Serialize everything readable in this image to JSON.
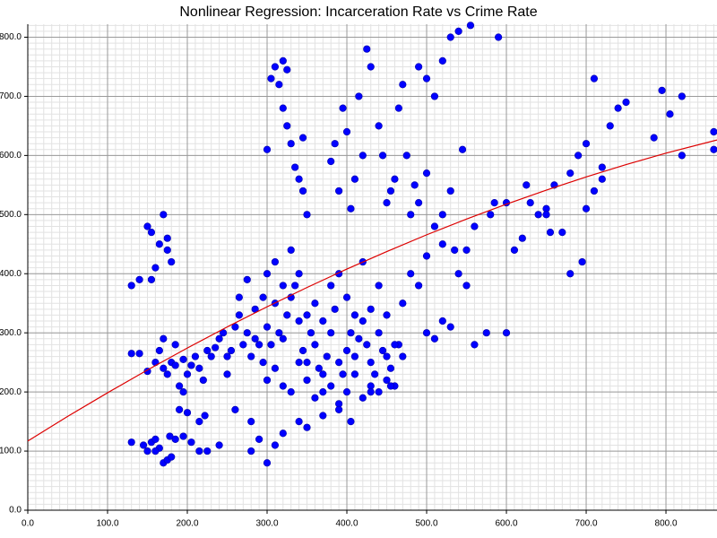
{
  "chart_data": {
    "type": "scatter",
    "title": "Nonlinear Regression: Incarceration Rate vs Crime Rate",
    "xlim": [
      0,
      864
    ],
    "ylim": [
      0,
      822
    ],
    "xticks": [
      {
        "value": 0,
        "label": "0.0"
      },
      {
        "value": 100,
        "label": "100.0"
      },
      {
        "value": 200,
        "label": "200.0"
      },
      {
        "value": 300,
        "label": "300.0"
      },
      {
        "value": 400,
        "label": "400.0"
      },
      {
        "value": 500,
        "label": "500.0"
      },
      {
        "value": 600,
        "label": "600.0"
      },
      {
        "value": 700,
        "label": "700.0"
      },
      {
        "value": 800,
        "label": "800.0"
      }
    ],
    "yticks": [
      {
        "value": 0,
        "label": "0.0"
      },
      {
        "value": 100,
        "label": "100.0"
      },
      {
        "value": 200,
        "label": "200.0"
      },
      {
        "value": 300,
        "label": "300.0"
      },
      {
        "value": 400,
        "label": "400.0"
      },
      {
        "value": 500,
        "label": "500.0"
      },
      {
        "value": 600,
        "label": "600.0"
      },
      {
        "value": 700,
        "label": "700.0"
      },
      {
        "value": 800,
        "label": "800.0"
      }
    ],
    "grid": true,
    "series": [
      {
        "type": "scatter",
        "color": "#0000ff",
        "x": [
          130,
          145,
          150,
          155,
          160,
          165,
          170,
          175,
          180,
          185,
          195,
          205,
          215,
          225,
          240,
          178,
          160,
          150,
          160,
          170,
          175,
          180,
          185,
          190,
          195,
          200,
          205,
          210,
          215,
          220,
          225,
          190,
          200,
          215,
          222,
          170,
          165,
          130,
          140,
          185,
          195,
          230,
          235,
          130,
          140,
          155,
          160,
          165,
          150,
          155,
          170,
          175,
          175,
          180,
          240,
          245,
          250,
          255,
          260,
          265,
          270,
          275,
          280,
          285,
          290,
          295,
          300,
          305,
          310,
          315,
          320,
          325,
          330,
          335,
          340,
          345,
          350,
          355,
          360,
          365,
          370,
          375,
          380,
          385,
          390,
          395,
          400,
          405,
          410,
          415,
          420,
          425,
          430,
          435,
          440,
          445,
          450,
          455,
          460,
          465,
          470,
          250,
          265,
          275,
          285,
          295,
          300,
          310,
          320,
          330,
          340,
          350,
          360,
          370,
          380,
          390,
          400,
          410,
          420,
          430,
          440,
          450,
          300,
          310,
          320,
          330,
          340,
          350,
          360,
          370,
          380,
          390,
          400,
          410,
          420,
          430,
          440,
          450,
          280,
          290,
          300,
          310,
          320,
          340,
          350,
          370,
          390,
          405,
          430,
          260,
          280,
          300,
          305,
          310,
          315,
          320,
          325,
          330,
          335,
          340,
          345,
          350,
          320,
          325,
          345,
          380,
          385,
          390,
          395,
          400,
          405,
          410,
          415,
          420,
          425,
          430,
          440,
          445,
          450,
          455,
          460,
          465,
          470,
          475,
          480,
          485,
          490,
          500,
          510,
          520,
          530,
          540,
          555,
          590,
          545,
          520,
          530,
          500,
          510,
          490,
          550,
          560,
          580,
          600,
          610,
          620,
          630,
          640,
          650,
          660,
          670,
          680,
          690,
          700,
          710,
          720,
          730,
          740,
          750,
          785,
          795,
          805,
          820,
          820,
          860,
          860,
          625,
          585,
          480,
          490,
          500,
          510,
          520,
          530,
          540,
          550,
          560,
          575,
          520,
          500,
          600,
          535,
          470,
          460,
          455,
          700,
          720,
          710,
          680,
          695,
          650,
          655
        ],
        "values": [
          115,
          110,
          100,
          115,
          120,
          105,
          80,
          85,
          90,
          120,
          125,
          115,
          100,
          100,
          110,
          125,
          100,
          235,
          250,
          240,
          230,
          250,
          245,
          210,
          200,
          230,
          245,
          260,
          240,
          220,
          270,
          170,
          165,
          150,
          160,
          290,
          270,
          265,
          265,
          280,
          255,
          260,
          275,
          380,
          390,
          390,
          410,
          450,
          480,
          470,
          500,
          460,
          440,
          420,
          290,
          300,
          260,
          270,
          310,
          330,
          280,
          300,
          260,
          290,
          280,
          250,
          310,
          280,
          350,
          300,
          290,
          330,
          360,
          380,
          320,
          270,
          250,
          300,
          280,
          240,
          200,
          260,
          300,
          340,
          250,
          230,
          270,
          300,
          260,
          290,
          320,
          280,
          250,
          230,
          300,
          270,
          260,
          240,
          210,
          280,
          350,
          230,
          360,
          390,
          340,
          360,
          400,
          420,
          380,
          440,
          400,
          330,
          350,
          320,
          380,
          400,
          360,
          330,
          420,
          340,
          380,
          330,
          220,
          240,
          210,
          200,
          250,
          220,
          190,
          230,
          210,
          180,
          200,
          230,
          190,
          210,
          200,
          220,
          100,
          120,
          80,
          110,
          130,
          150,
          140,
          160,
          170,
          150,
          200,
          170,
          150,
          610,
          730,
          750,
          720,
          680,
          650,
          620,
          580,
          560,
          540,
          500,
          760,
          745,
          630,
          590,
          620,
          540,
          680,
          640,
          510,
          560,
          700,
          600,
          780,
          750,
          650,
          600,
          520,
          540,
          560,
          680,
          720,
          600,
          500,
          550,
          750,
          730,
          700,
          760,
          800,
          810,
          820,
          800,
          610,
          500,
          540,
          570,
          480,
          520,
          440,
          480,
          500,
          520,
          440,
          460,
          520,
          500,
          510,
          550,
          470,
          570,
          600,
          620,
          730,
          560,
          650,
          680,
          690,
          630,
          710,
          670,
          700,
          600,
          610,
          640,
          550,
          520,
          400,
          380,
          300,
          290,
          320,
          310,
          400,
          380,
          280,
          300,
          450,
          430,
          300,
          440,
          260,
          280,
          210,
          510,
          580,
          540,
          400,
          420,
          500,
          470
        ]
      },
      {
        "type": "line",
        "color": "#dd0000",
        "x": [
          0,
          50,
          100,
          150,
          200,
          250,
          300,
          350,
          400,
          450,
          500,
          550,
          600,
          650,
          700,
          750,
          800,
          864
        ],
        "values": [
          117,
          158.6,
          198.6,
          237.2,
          274.3,
          310,
          344.1,
          376.7,
          407.9,
          437.5,
          465.8,
          492.4,
          517.7,
          541.4,
          563.7,
          584.5,
          603.9,
          626.2
        ]
      }
    ]
  }
}
